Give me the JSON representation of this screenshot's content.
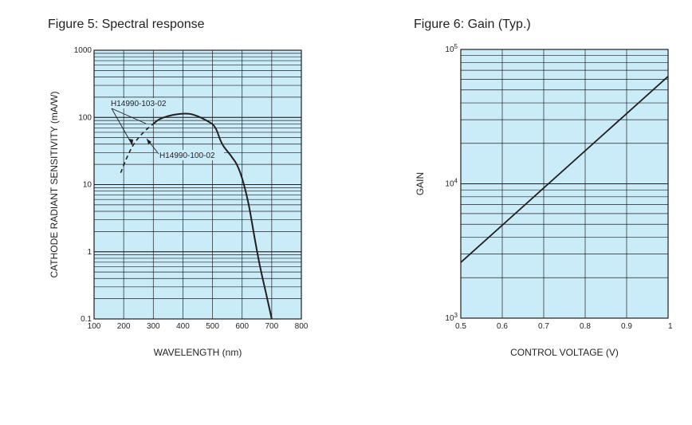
{
  "figure5": {
    "title": "Figure 5: Spectral response",
    "chart_data": {
      "type": "line",
      "title": "Figure 5: Spectral response",
      "xlabel": "WAVELENGTH (nm)",
      "ylabel": "CATHODE RADIANT SENSITIVITY (mA/W)",
      "xlim": [
        100,
        800
      ],
      "ylim": [
        0.1,
        1000
      ],
      "yscale": "log",
      "grid": true,
      "x_ticks": [
        "100",
        "200",
        "300",
        "400",
        "500",
        "600",
        "700",
        "800"
      ],
      "y_ticks": [
        "0.1",
        "1",
        "10",
        "100",
        "1000"
      ],
      "series": [
        {
          "name": "H14990-100-02",
          "style": "solid",
          "x": [
            300,
            320,
            350,
            380,
            420,
            450,
            480,
            510,
            530,
            560,
            590,
            620,
            640,
            660,
            680,
            700
          ],
          "y": [
            80,
            95,
            105,
            112,
            115,
            105,
            90,
            75,
            40,
            28,
            18,
            6,
            1.8,
            0.6,
            0.25,
            0.1
          ]
        },
        {
          "name": "H14990-103-02",
          "style": "dashed",
          "x": [
            190,
            210,
            230,
            250,
            270,
            290,
            300
          ],
          "y": [
            15,
            25,
            38,
            50,
            62,
            74,
            80
          ]
        }
      ],
      "annotations": [
        "H14990-103-02",
        "H14990-100-02"
      ]
    }
  },
  "figure6": {
    "title": "Figure 6: Gain (Typ.)",
    "chart_data": {
      "type": "line",
      "title": "Figure 6: Gain (Typ.)",
      "xlabel": "CONTROL VOLTAGE (V)",
      "ylabel": "GAIN",
      "xlim": [
        0.5,
        1
      ],
      "ylim": [
        1000,
        100000
      ],
      "yscale": "log",
      "grid": true,
      "x_ticks": [
        "0.5",
        "0.6",
        "0.7",
        "0.8",
        "0.9",
        "1"
      ],
      "y_ticks": [
        {
          "base": "10",
          "exp": "3"
        },
        {
          "base": "10",
          "exp": "4"
        },
        {
          "base": "10",
          "exp": "5"
        }
      ],
      "series": [
        {
          "x": [
            0.5,
            1.0
          ],
          "y": [
            2600,
            63000
          ]
        }
      ]
    }
  },
  "colors": {
    "plot_bg": "#c9ecf8",
    "grid": "#231f20",
    "line": "#231f20",
    "text": "#231f20"
  }
}
